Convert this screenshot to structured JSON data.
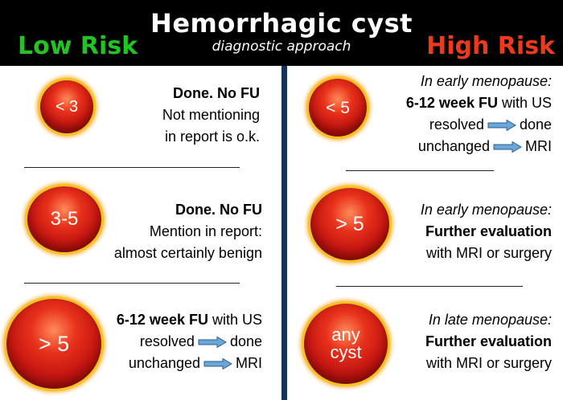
{
  "header": {
    "title": "Hemorrhagic cyst",
    "subtitle": "diagnostic approach",
    "low_risk": "Low Risk",
    "high_risk": "High Risk"
  },
  "colors": {
    "low_risk": "#21c421",
    "high_risk": "#ee3a1c",
    "divider": "#13335a",
    "ball": "#c51611",
    "ball_rim": "#f6c21e",
    "arrow": "#6aa6d8"
  },
  "icons": [
    "right-arrow-icon"
  ],
  "low": [
    {
      "size": "< 3",
      "lines": {
        "l1": "Done. No FU",
        "l2": "Not mentioning",
        "l3": "in report is o.k."
      }
    },
    {
      "size": "3-5",
      "lines": {
        "l1": "Done. No FU",
        "l2": "Mention in report:",
        "l3": "almost certainly benign"
      }
    },
    {
      "size": "> 5",
      "lines": {
        "l1_bold": "6-12 week FU",
        "l1_rest": " with US",
        "l2_a": "resolved",
        "l2_b": "done",
        "l3_a": "unchanged",
        "l3_b": "MRI"
      }
    }
  ],
  "high": [
    {
      "size": "< 5",
      "lines": {
        "l0": "In early menopause:",
        "l1_bold": "6-12 week FU",
        "l1_rest": " with US",
        "l2_a": "resolved",
        "l2_b": "done",
        "l3_a": "unchanged",
        "l3_b": "MRI"
      }
    },
    {
      "size": "> 5",
      "lines": {
        "l1": "In early menopause:",
        "l2": "Further evaluation",
        "l3": "with MRI or surgery"
      }
    },
    {
      "size_line1": "any",
      "size_line2": "cyst",
      "lines": {
        "l1": "In late menopause:",
        "l2": "Further evaluation",
        "l3": "with MRI or surgery"
      }
    }
  ]
}
